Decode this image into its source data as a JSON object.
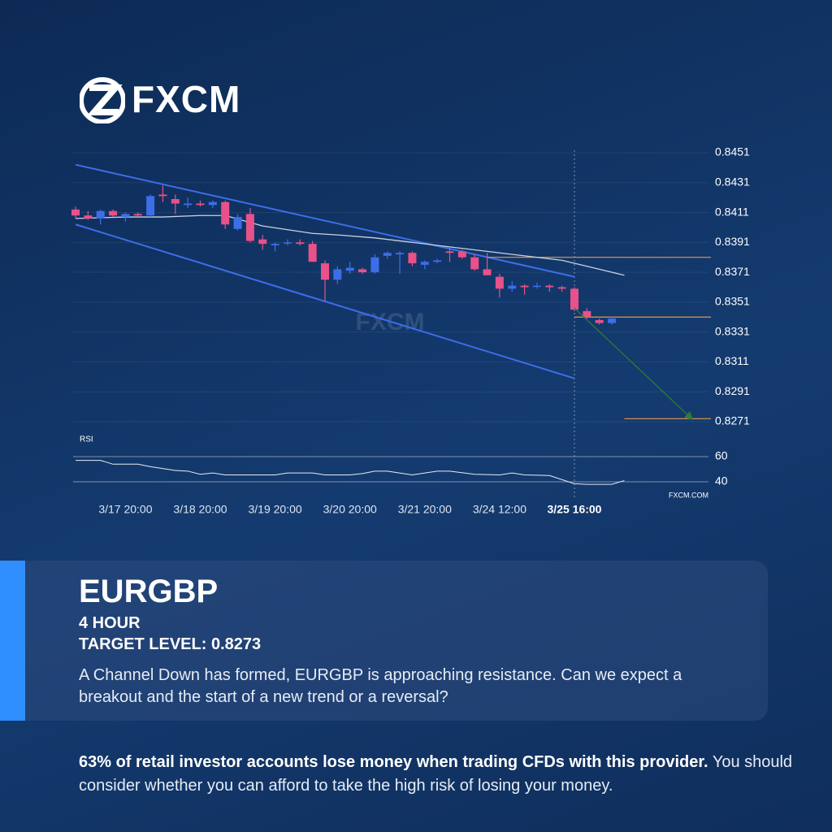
{
  "logo": "FXCM",
  "chart_data": {
    "type": "candlestick",
    "watermark": "FXCM",
    "source": "FXCM.COM",
    "categories": [
      null,
      null,
      null,
      null,
      "3/17 20:00",
      null,
      null,
      null,
      null,
      null,
      "3/18 20:00",
      null,
      null,
      null,
      null,
      null,
      "3/19 20:00",
      null,
      null,
      null,
      null,
      null,
      "3/20 20:00",
      null,
      null,
      null,
      null,
      null,
      "3/21 20:00",
      null,
      null,
      null,
      null,
      null,
      "3/24 12:00",
      null,
      null,
      null,
      null,
      null,
      "3/25 16:00",
      null,
      null,
      null
    ],
    "now_index": 40,
    "open": [
      0.8413,
      0.8409,
      0.8407,
      0.8412,
      0.8408,
      0.841,
      0.8409,
      0.8423,
      0.842,
      0.8416,
      0.8417,
      0.8416,
      0.8418,
      0.84,
      0.841,
      0.8393,
      0.8389,
      0.8391,
      0.8391,
      0.839,
      0.8377,
      0.8366,
      0.8372,
      0.8373,
      0.8371,
      0.8382,
      0.8383,
      0.8384,
      0.8376,
      0.8378,
      0.8385,
      0.8385,
      0.8381,
      0.8373,
      0.8368,
      0.836,
      0.8362,
      0.8362,
      0.8362,
      0.8361,
      0.836,
      0.8345,
      0.8339,
      0.8337
    ],
    "high": [
      0.8415,
      0.8412,
      0.8413,
      0.8413,
      0.8411,
      0.8411,
      0.8423,
      0.8429,
      0.8423,
      0.8421,
      0.8419,
      0.8419,
      0.8419,
      0.841,
      0.8414,
      0.8396,
      0.8391,
      0.8393,
      0.8393,
      0.8392,
      0.8379,
      0.8375,
      0.8378,
      0.8374,
      0.8383,
      0.8385,
      0.8385,
      0.8385,
      0.8379,
      0.838,
      0.8387,
      0.8386,
      0.8383,
      0.8384,
      0.837,
      0.8365,
      0.8363,
      0.8364,
      0.8363,
      0.8362,
      0.8361,
      0.8347,
      0.834,
      0.8341
    ],
    "low": [
      0.8407,
      0.8406,
      0.8403,
      0.8408,
      0.8405,
      0.8408,
      0.8408,
      0.8418,
      0.841,
      0.8414,
      0.8415,
      0.8414,
      0.84,
      0.8399,
      0.8391,
      0.8386,
      0.8385,
      0.8389,
      0.8389,
      0.8378,
      0.8352,
      0.8363,
      0.837,
      0.837,
      0.837,
      0.838,
      0.837,
      0.8375,
      0.8373,
      0.8377,
      0.8378,
      0.838,
      0.8372,
      0.8369,
      0.8354,
      0.8358,
      0.8356,
      0.836,
      0.8358,
      0.8358,
      0.8345,
      0.834,
      0.8336,
      0.8336
    ],
    "close": [
      0.8409,
      0.8407,
      0.8412,
      0.8409,
      0.841,
      0.8409,
      0.8422,
      0.8422,
      0.8417,
      0.8417,
      0.8416,
      0.8418,
      0.8403,
      0.8408,
      0.8392,
      0.839,
      0.839,
      0.8391,
      0.839,
      0.8378,
      0.8366,
      0.8373,
      0.8374,
      0.8371,
      0.8381,
      0.8384,
      0.8384,
      0.8377,
      0.8378,
      0.8379,
      0.8384,
      0.8381,
      0.8373,
      0.8369,
      0.836,
      0.8362,
      0.8361,
      0.8362,
      0.8361,
      0.836,
      0.8346,
      0.8341,
      0.8337,
      0.834
    ],
    "up_color": "#3d6ee8",
    "down_color": "#e8518a",
    "ylim": [
      0.8265,
      0.8451
    ],
    "yticks": [
      0.8451,
      0.8431,
      0.8411,
      0.8391,
      0.8371,
      0.8351,
      0.8331,
      0.8311,
      0.8291,
      0.8271
    ],
    "grid": true,
    "ma": {
      "color": "#c9d2e0",
      "x": [
        0,
        4,
        7,
        10,
        12,
        15,
        19,
        21,
        24,
        27,
        30,
        33,
        36,
        39,
        42,
        44
      ],
      "values": [
        0.8407,
        0.8408,
        0.8408,
        0.8409,
        0.8409,
        0.8402,
        0.8397,
        0.8396,
        0.8394,
        0.8391,
        0.8388,
        0.8385,
        0.8382,
        0.8379,
        0.8373,
        0.8369
      ]
    },
    "channel": {
      "color": "#3d6ee8",
      "x": [
        0,
        40
      ],
      "upper": [
        0.8443,
        0.8368
      ],
      "lower": [
        0.8403,
        0.83
      ]
    },
    "levels": {
      "color": "#e8954a",
      "x_start": [
        33,
        40,
        44
      ],
      "values": [
        0.8381,
        0.8341,
        0.8273
      ]
    },
    "projection": {
      "color": "#2e7d32",
      "x": [
        40,
        49.4
      ],
      "values": [
        0.8347,
        0.8273
      ]
    },
    "rsi": {
      "label": "RSI",
      "ylim": [
        30,
        70
      ],
      "yticks": [
        60,
        40
      ],
      "x": [
        0,
        2,
        3,
        5,
        6,
        8,
        9,
        10,
        11,
        12,
        16,
        17,
        19,
        20,
        22,
        23,
        24,
        25,
        27,
        29,
        30,
        32,
        34,
        35,
        36,
        38,
        40,
        41,
        43,
        44
      ],
      "values": [
        57,
        57,
        54,
        54,
        52,
        49,
        48.5,
        46,
        47,
        45.5,
        45.5,
        47,
        47,
        45.5,
        45.5,
        46.5,
        48.5,
        48.5,
        45.5,
        48.5,
        48.5,
        46,
        45.5,
        47,
        45.5,
        45,
        38.5,
        38,
        38,
        41
      ]
    }
  },
  "panel": {
    "symbol": "EURGBP",
    "timeframe": "4 HOUR",
    "target": "TARGET LEVEL: 0.8273",
    "text": "A Channel Down has formed, EURGBP is approaching resistance. Can we expect a breakout and the start of a new trend or a reversal?"
  },
  "disclaimer": {
    "bold": "63% of retail investor accounts lose money when trading CFDs with this provider.",
    "text": "You should consider whether you can afford to take the high risk of losing your money."
  }
}
